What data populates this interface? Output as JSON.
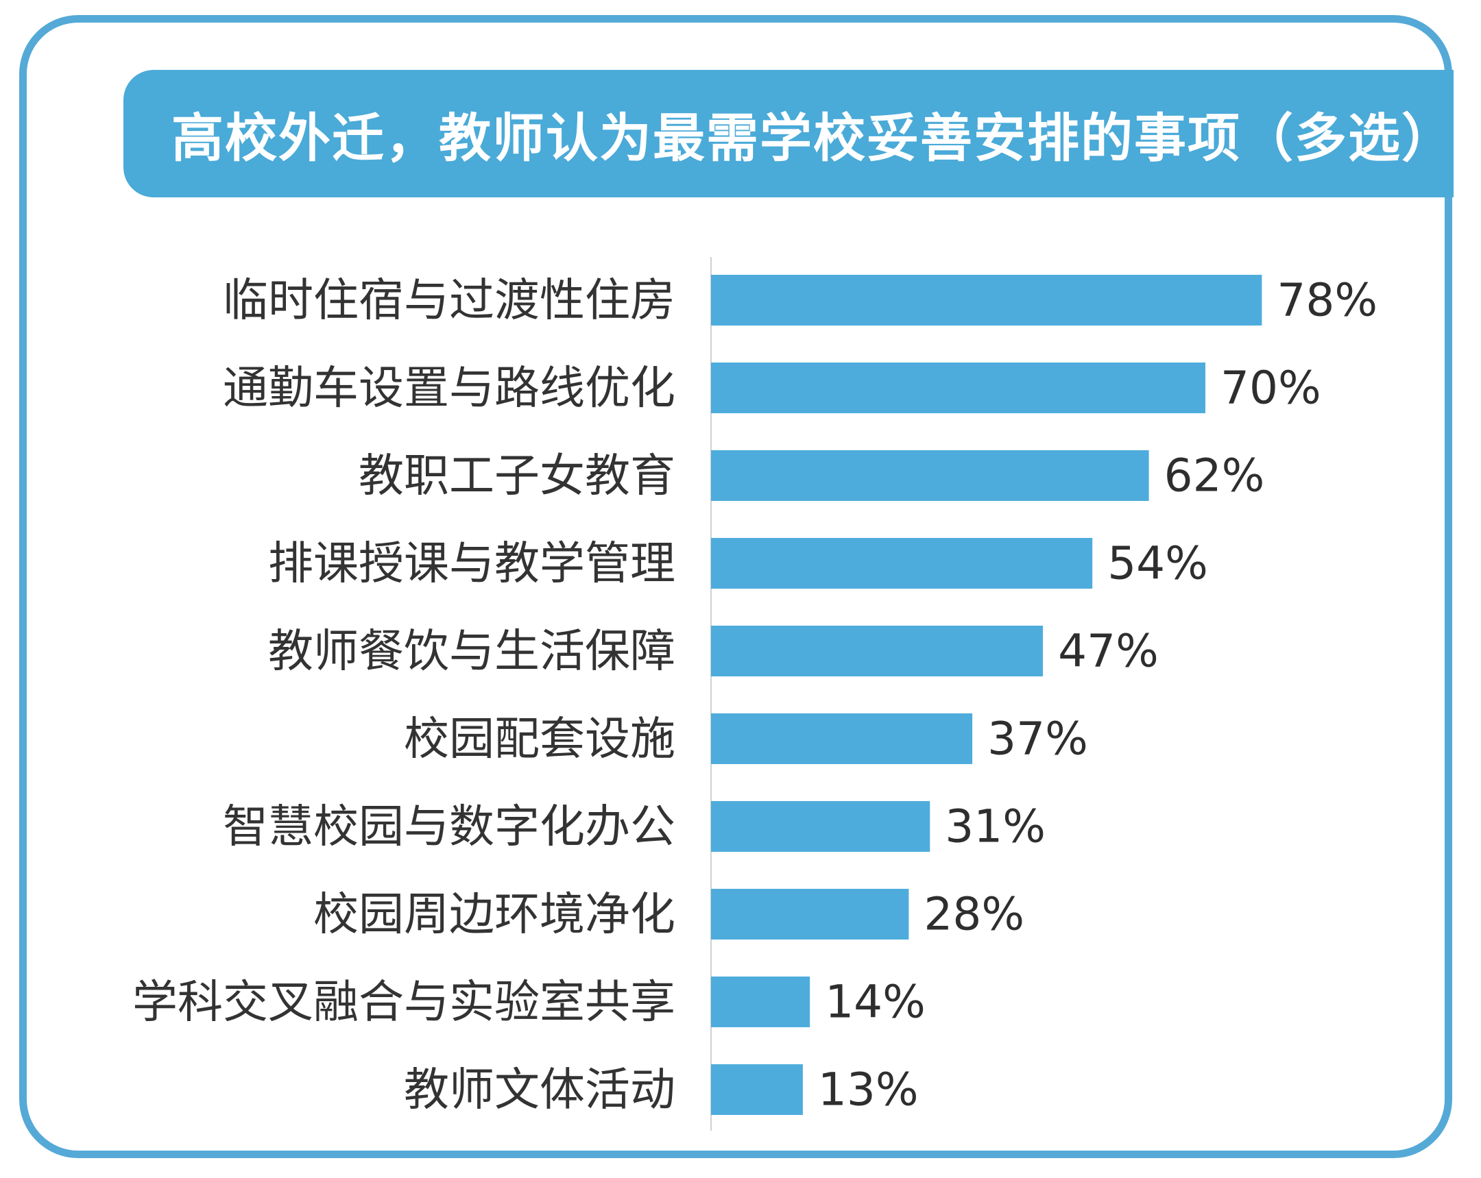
{
  "chart_data": {
    "type": "bar",
    "orientation": "horizontal",
    "title": "高校外迁，教师认为最需学校妥善安排的事项（多选）",
    "categories": [
      "临时住宿与过渡性住房",
      "通勤车设置与路线优化",
      "教职工子女教育",
      "排课授课与教学管理",
      "教师餐饮与生活保障",
      "校园配套设施",
      "智慧校园与数字化办公",
      "校园周边环境净化",
      "学科交叉融合与实验室共享",
      "教师文体活动"
    ],
    "values": [
      78,
      70,
      62,
      54,
      47,
      37,
      31,
      28,
      14,
      13
    ],
    "value_labels": [
      "78%",
      "70%",
      "62%",
      "54%",
      "47%",
      "37%",
      "31%",
      "28%",
      "14%",
      "13%"
    ],
    "unit": "%",
    "xlim": [
      0,
      100
    ],
    "grid": false,
    "legend": "none",
    "colors": {
      "bar": "#4eacdc",
      "banner": "#4aaad8",
      "border": "#55a9d6",
      "axis": "#d0d0d0"
    }
  }
}
